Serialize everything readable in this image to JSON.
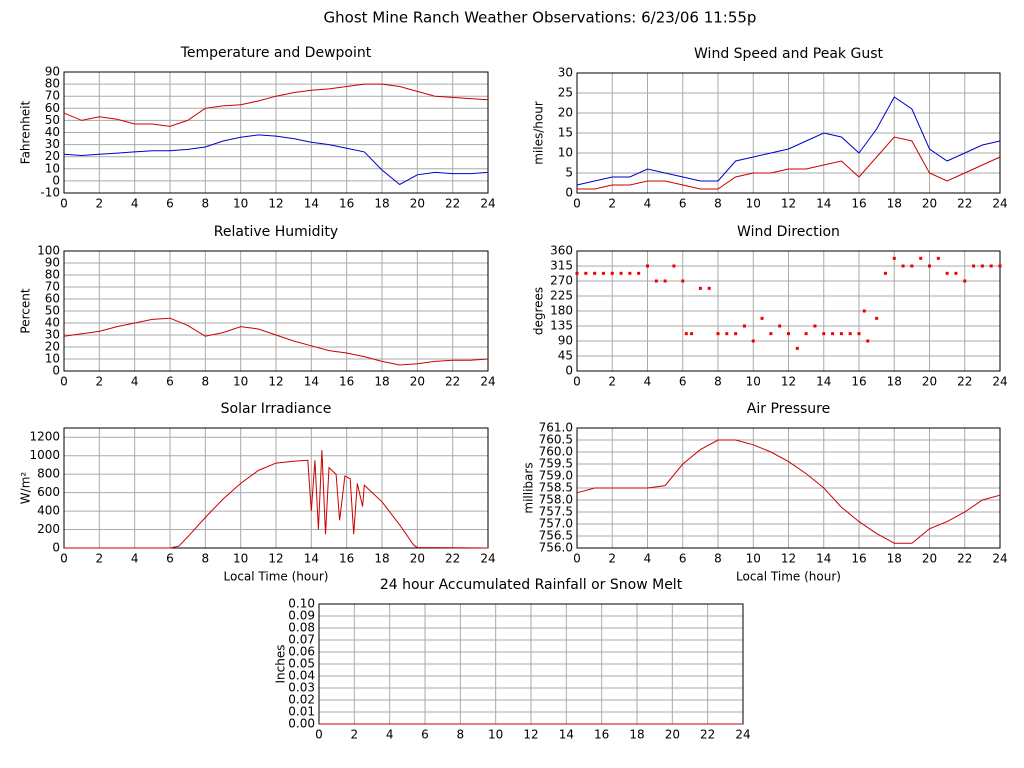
{
  "title": "Ghost Mine Ranch Weather Observations: 6/23/06 11:55p",
  "chart_data": [
    {
      "type": "line",
      "title": "Temperature and Dewpoint",
      "ylabel": "Fahrenheit",
      "x": [
        0,
        1,
        2,
        3,
        4,
        5,
        6,
        7,
        8,
        9,
        10,
        11,
        12,
        13,
        14,
        15,
        16,
        17,
        18,
        19,
        20,
        21,
        22,
        23,
        24
      ],
      "series": [
        {
          "color": "#cc0000",
          "values": [
            56,
            50,
            53,
            51,
            47,
            47,
            45,
            50,
            60,
            62,
            63,
            66,
            70,
            73,
            75,
            76,
            78,
            80,
            80,
            78,
            74,
            70,
            69,
            68,
            67
          ]
        },
        {
          "color": "#0000cc",
          "values": [
            22,
            21,
            22,
            23,
            24,
            25,
            25,
            26,
            28,
            33,
            36,
            38,
            37,
            35,
            32,
            30,
            27,
            24,
            9,
            -3,
            5,
            7,
            6,
            6,
            7
          ]
        }
      ],
      "xlim": [
        0,
        24
      ],
      "xticks": [
        0,
        2,
        4,
        6,
        8,
        10,
        12,
        14,
        16,
        18,
        20,
        22,
        24
      ],
      "ylim": [
        -10,
        90
      ],
      "yticks": [
        -10,
        0,
        10,
        20,
        30,
        40,
        50,
        60,
        70,
        80,
        90
      ],
      "grid": true
    },
    {
      "type": "line",
      "title": "Wind Speed and Peak Gust",
      "ylabel": "miles/hour",
      "x": [
        0,
        1,
        2,
        3,
        4,
        5,
        6,
        7,
        8,
        9,
        10,
        11,
        12,
        13,
        14,
        15,
        16,
        17,
        18,
        19,
        20,
        21,
        22,
        23,
        24
      ],
      "series": [
        {
          "color": "#0000cc",
          "values": [
            2,
            3,
            4,
            4,
            6,
            5,
            4,
            3,
            3,
            8,
            9,
            10,
            11,
            13,
            15,
            14,
            10,
            16,
            24,
            21,
            11,
            8,
            10,
            12,
            13
          ]
        },
        {
          "color": "#cc0000",
          "values": [
            1,
            1,
            2,
            2,
            3,
            3,
            2,
            1,
            1,
            4,
            5,
            5,
            6,
            6,
            7,
            8,
            4,
            9,
            14,
            13,
            5,
            3,
            5,
            7,
            9
          ]
        }
      ],
      "xlim": [
        0,
        24
      ],
      "xticks": [
        0,
        2,
        4,
        6,
        8,
        10,
        12,
        14,
        16,
        18,
        20,
        22,
        24
      ],
      "ylim": [
        0,
        30
      ],
      "yticks": [
        0,
        5,
        10,
        15,
        20,
        25,
        30
      ],
      "grid": true
    },
    {
      "type": "line",
      "title": "Relative Humidity",
      "ylabel": "Percent",
      "x": [
        0,
        1,
        2,
        3,
        4,
        5,
        6,
        7,
        8,
        9,
        10,
        11,
        12,
        13,
        14,
        15,
        16,
        17,
        18,
        19,
        20,
        21,
        22,
        23,
        24
      ],
      "series": [
        {
          "color": "#cc0000",
          "values": [
            29,
            31,
            33,
            37,
            40,
            43,
            44,
            38,
            29,
            32,
            37,
            35,
            30,
            25,
            21,
            17,
            15,
            12,
            8,
            5,
            6,
            8,
            9,
            9,
            10
          ]
        }
      ],
      "xlim": [
        0,
        24
      ],
      "xticks": [
        0,
        2,
        4,
        6,
        8,
        10,
        12,
        14,
        16,
        18,
        20,
        22,
        24
      ],
      "ylim": [
        0,
        100
      ],
      "yticks": [
        0,
        10,
        20,
        30,
        40,
        50,
        60,
        70,
        80,
        90,
        100
      ],
      "grid": true
    },
    {
      "type": "scatter",
      "title": "Wind Direction",
      "ylabel": "degrees",
      "color": "#ee0000",
      "x": [
        0,
        0.5,
        1,
        1.5,
        2,
        2.5,
        3,
        3.5,
        4,
        4.5,
        5,
        5.5,
        6,
        6.2,
        6.5,
        7,
        7.5,
        8,
        8.5,
        9,
        9.5,
        10,
        10.5,
        11,
        11.5,
        12,
        12.5,
        13,
        13.5,
        14,
        14.5,
        15,
        15.5,
        16,
        16.3,
        16.5,
        17,
        17.5,
        18,
        18.5,
        19,
        19.5,
        20,
        20.5,
        21,
        21.5,
        22,
        22.5,
        23,
        23.5,
        24
      ],
      "values": [
        293,
        293,
        293,
        293,
        293,
        293,
        293,
        293,
        315,
        270,
        270,
        315,
        270,
        112,
        112,
        248,
        248,
        112,
        112,
        112,
        135,
        90,
        158,
        112,
        135,
        112,
        68,
        112,
        135,
        112,
        112,
        112,
        112,
        112,
        180,
        90,
        158,
        293,
        338,
        315,
        315,
        338,
        315,
        338,
        293,
        293,
        270,
        315,
        315,
        315,
        315
      ],
      "xlim": [
        0,
        24
      ],
      "xticks": [
        0,
        2,
        4,
        6,
        8,
        10,
        12,
        14,
        16,
        18,
        20,
        22,
        24
      ],
      "ylim": [
        0,
        360
      ],
      "yticks": [
        0,
        45,
        90,
        135,
        180,
        225,
        270,
        315,
        360
      ],
      "grid": true
    },
    {
      "type": "line",
      "title": "Solar Irradiance",
      "ylabel": "W/m²",
      "xlabel": "Local Time (hour)",
      "x": [
        0,
        6,
        6.5,
        7,
        8,
        9,
        10,
        11,
        12,
        13,
        13.8,
        14,
        14.2,
        14.4,
        14.6,
        14.8,
        15,
        15.4,
        15.6,
        15.9,
        16.2,
        16.4,
        16.6,
        16.9,
        17,
        18,
        19,
        19.8,
        20,
        24
      ],
      "series": [
        {
          "color": "#cc0000",
          "values": [
            0,
            0,
            20,
            120,
            330,
            530,
            700,
            840,
            920,
            940,
            950,
            400,
            950,
            200,
            1060,
            150,
            870,
            800,
            300,
            780,
            750,
            150,
            700,
            450,
            680,
            500,
            250,
            30,
            5,
            0
          ]
        }
      ],
      "xlim": [
        0,
        24
      ],
      "xticks": [
        0,
        2,
        4,
        6,
        8,
        10,
        12,
        14,
        16,
        18,
        20,
        22,
        24
      ],
      "ylim": [
        0,
        1300
      ],
      "yticks": [
        0,
        200,
        400,
        600,
        800,
        1000,
        1200
      ],
      "grid": true
    },
    {
      "type": "line",
      "title": "Air Pressure",
      "ylabel": "millibars",
      "xlabel": "Local Time (hour)",
      "x": [
        0,
        1,
        2,
        3,
        4,
        5,
        6,
        7,
        8,
        9,
        10,
        11,
        12,
        13,
        14,
        15,
        16,
        17,
        18,
        19,
        20,
        21,
        22,
        23,
        24
      ],
      "series": [
        {
          "color": "#cc0000",
          "values": [
            758.3,
            758.5,
            758.5,
            758.5,
            758.5,
            758.6,
            759.5,
            760.1,
            760.5,
            760.5,
            760.3,
            760.0,
            759.6,
            759.1,
            758.5,
            757.7,
            757.1,
            756.6,
            756.2,
            756.2,
            756.8,
            757.1,
            757.5,
            758.0,
            758.2
          ]
        }
      ],
      "xlim": [
        0,
        24
      ],
      "xticks": [
        0,
        2,
        4,
        6,
        8,
        10,
        12,
        14,
        16,
        18,
        20,
        22,
        24
      ],
      "ylim": [
        756.0,
        761.0
      ],
      "yticks": [
        {
          "value": 756.0,
          "label": "756.0"
        },
        {
          "value": 756.5,
          "label": "756.5"
        },
        {
          "value": 757.0,
          "label": "757.0"
        },
        {
          "value": 757.5,
          "label": "757.5"
        },
        {
          "value": 758.0,
          "label": "758.0"
        },
        {
          "value": 758.5,
          "label": "758.5"
        },
        {
          "value": 759.0,
          "label": "759.0"
        },
        {
          "value": 759.5,
          "label": "759.5"
        },
        {
          "value": 760.0,
          "label": "760.0"
        },
        {
          "value": 760.5,
          "label": "760.5"
        },
        {
          "value": 761.0,
          "label": "761.0"
        }
      ],
      "grid": true
    },
    {
      "type": "line",
      "title": "24 hour Accumulated Rainfall or Snow Melt",
      "ylabel": "Inches",
      "x": [
        0,
        24
      ],
      "series": [
        {
          "color": "#cc0000",
          "values": [
            0,
            0
          ]
        }
      ],
      "xlim": [
        0,
        24
      ],
      "xticks": [
        0,
        2,
        4,
        6,
        8,
        10,
        12,
        14,
        16,
        18,
        20,
        22,
        24
      ],
      "ylim": [
        0,
        0.1
      ],
      "yticks": [
        {
          "value": 0,
          "label": "0.00"
        },
        {
          "value": 0.01,
          "label": "0.01"
        },
        {
          "value": 0.02,
          "label": "0.02"
        },
        {
          "value": 0.03,
          "label": "0.03"
        },
        {
          "value": 0.04,
          "label": "0.04"
        },
        {
          "value": 0.05,
          "label": "0.05"
        },
        {
          "value": 0.06,
          "label": "0.06"
        },
        {
          "value": 0.07,
          "label": "0.07"
        },
        {
          "value": 0.08,
          "label": "0.08"
        },
        {
          "value": 0.09,
          "label": "0.09"
        },
        {
          "value": 0.1,
          "label": "0.10"
        }
      ],
      "grid": true
    }
  ]
}
